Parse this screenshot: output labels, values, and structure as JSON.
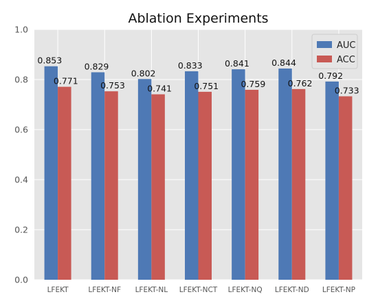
{
  "chart_data": {
    "type": "bar",
    "title": "Ablation Experiments",
    "xlabel": "",
    "ylabel": "",
    "categories": [
      "LFEKT",
      "LFEKT-NF",
      "LFEKT-NL",
      "LFEKT-NCT",
      "LFEKT-NQ",
      "LFEKT-ND",
      "LFEKT-NP"
    ],
    "series": [
      {
        "name": "AUC",
        "color": "#4e79b5",
        "values": [
          0.853,
          0.829,
          0.802,
          0.833,
          0.841,
          0.844,
          0.792
        ]
      },
      {
        "name": "ACC",
        "color": "#c85a55",
        "values": [
          0.771,
          0.753,
          0.741,
          0.751,
          0.759,
          0.762,
          0.733
        ]
      }
    ],
    "ylim": [
      0.0,
      1.0
    ],
    "yticks": [
      "0.0",
      "0.2",
      "0.4",
      "0.6",
      "0.8",
      "1.0"
    ],
    "grid": true,
    "background": "#e5e5e5",
    "legend_position": "top-right"
  }
}
